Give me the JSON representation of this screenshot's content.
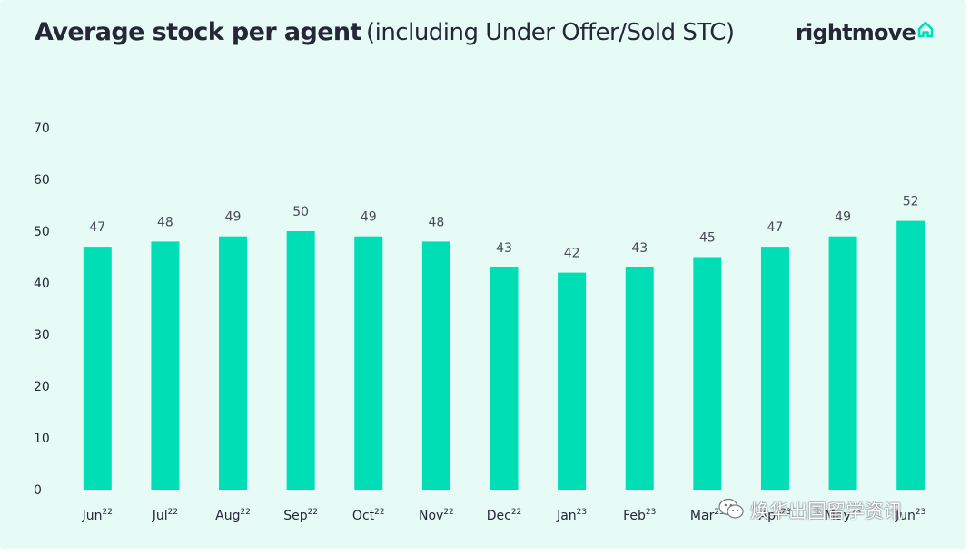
{
  "title": {
    "main": "Average stock per agent",
    "sub": "(including Under Offer/Sold STC)"
  },
  "brand": {
    "name": "rightmove",
    "icon": "house-outline-icon"
  },
  "colors": {
    "background": "#e6fbf5",
    "bar": "#00deb6",
    "text": "#262637"
  },
  "watermark": {
    "icon": "wechat-icon",
    "text": "焕华出国留学资讯"
  },
  "chart_data": {
    "type": "bar",
    "title": "Average stock per agent (including Under Offer/Sold STC)",
    "categories": [
      "Jun",
      "Jul",
      "Aug",
      "Sep",
      "Oct",
      "Nov",
      "Dec",
      "Jan",
      "Feb",
      "Mar",
      "Apr",
      "May",
      "Jun"
    ],
    "category_superscripts": [
      "22",
      "22",
      "22",
      "22",
      "22",
      "22",
      "22",
      "23",
      "23",
      "23",
      "23",
      "23",
      "23"
    ],
    "values": [
      47,
      48,
      49,
      50,
      49,
      48,
      43,
      42,
      43,
      45,
      47,
      49,
      52
    ],
    "data_labels": [
      "47",
      "48",
      "49",
      "50",
      "49",
      "48",
      "43",
      "42",
      "43",
      "45",
      "47",
      "49",
      "52"
    ],
    "y_ticks": [
      0,
      10,
      20,
      30,
      40,
      50,
      60,
      70
    ],
    "ylim": [
      0,
      70
    ],
    "xlabel": "",
    "ylabel": "",
    "grid": false,
    "legend": "none"
  }
}
